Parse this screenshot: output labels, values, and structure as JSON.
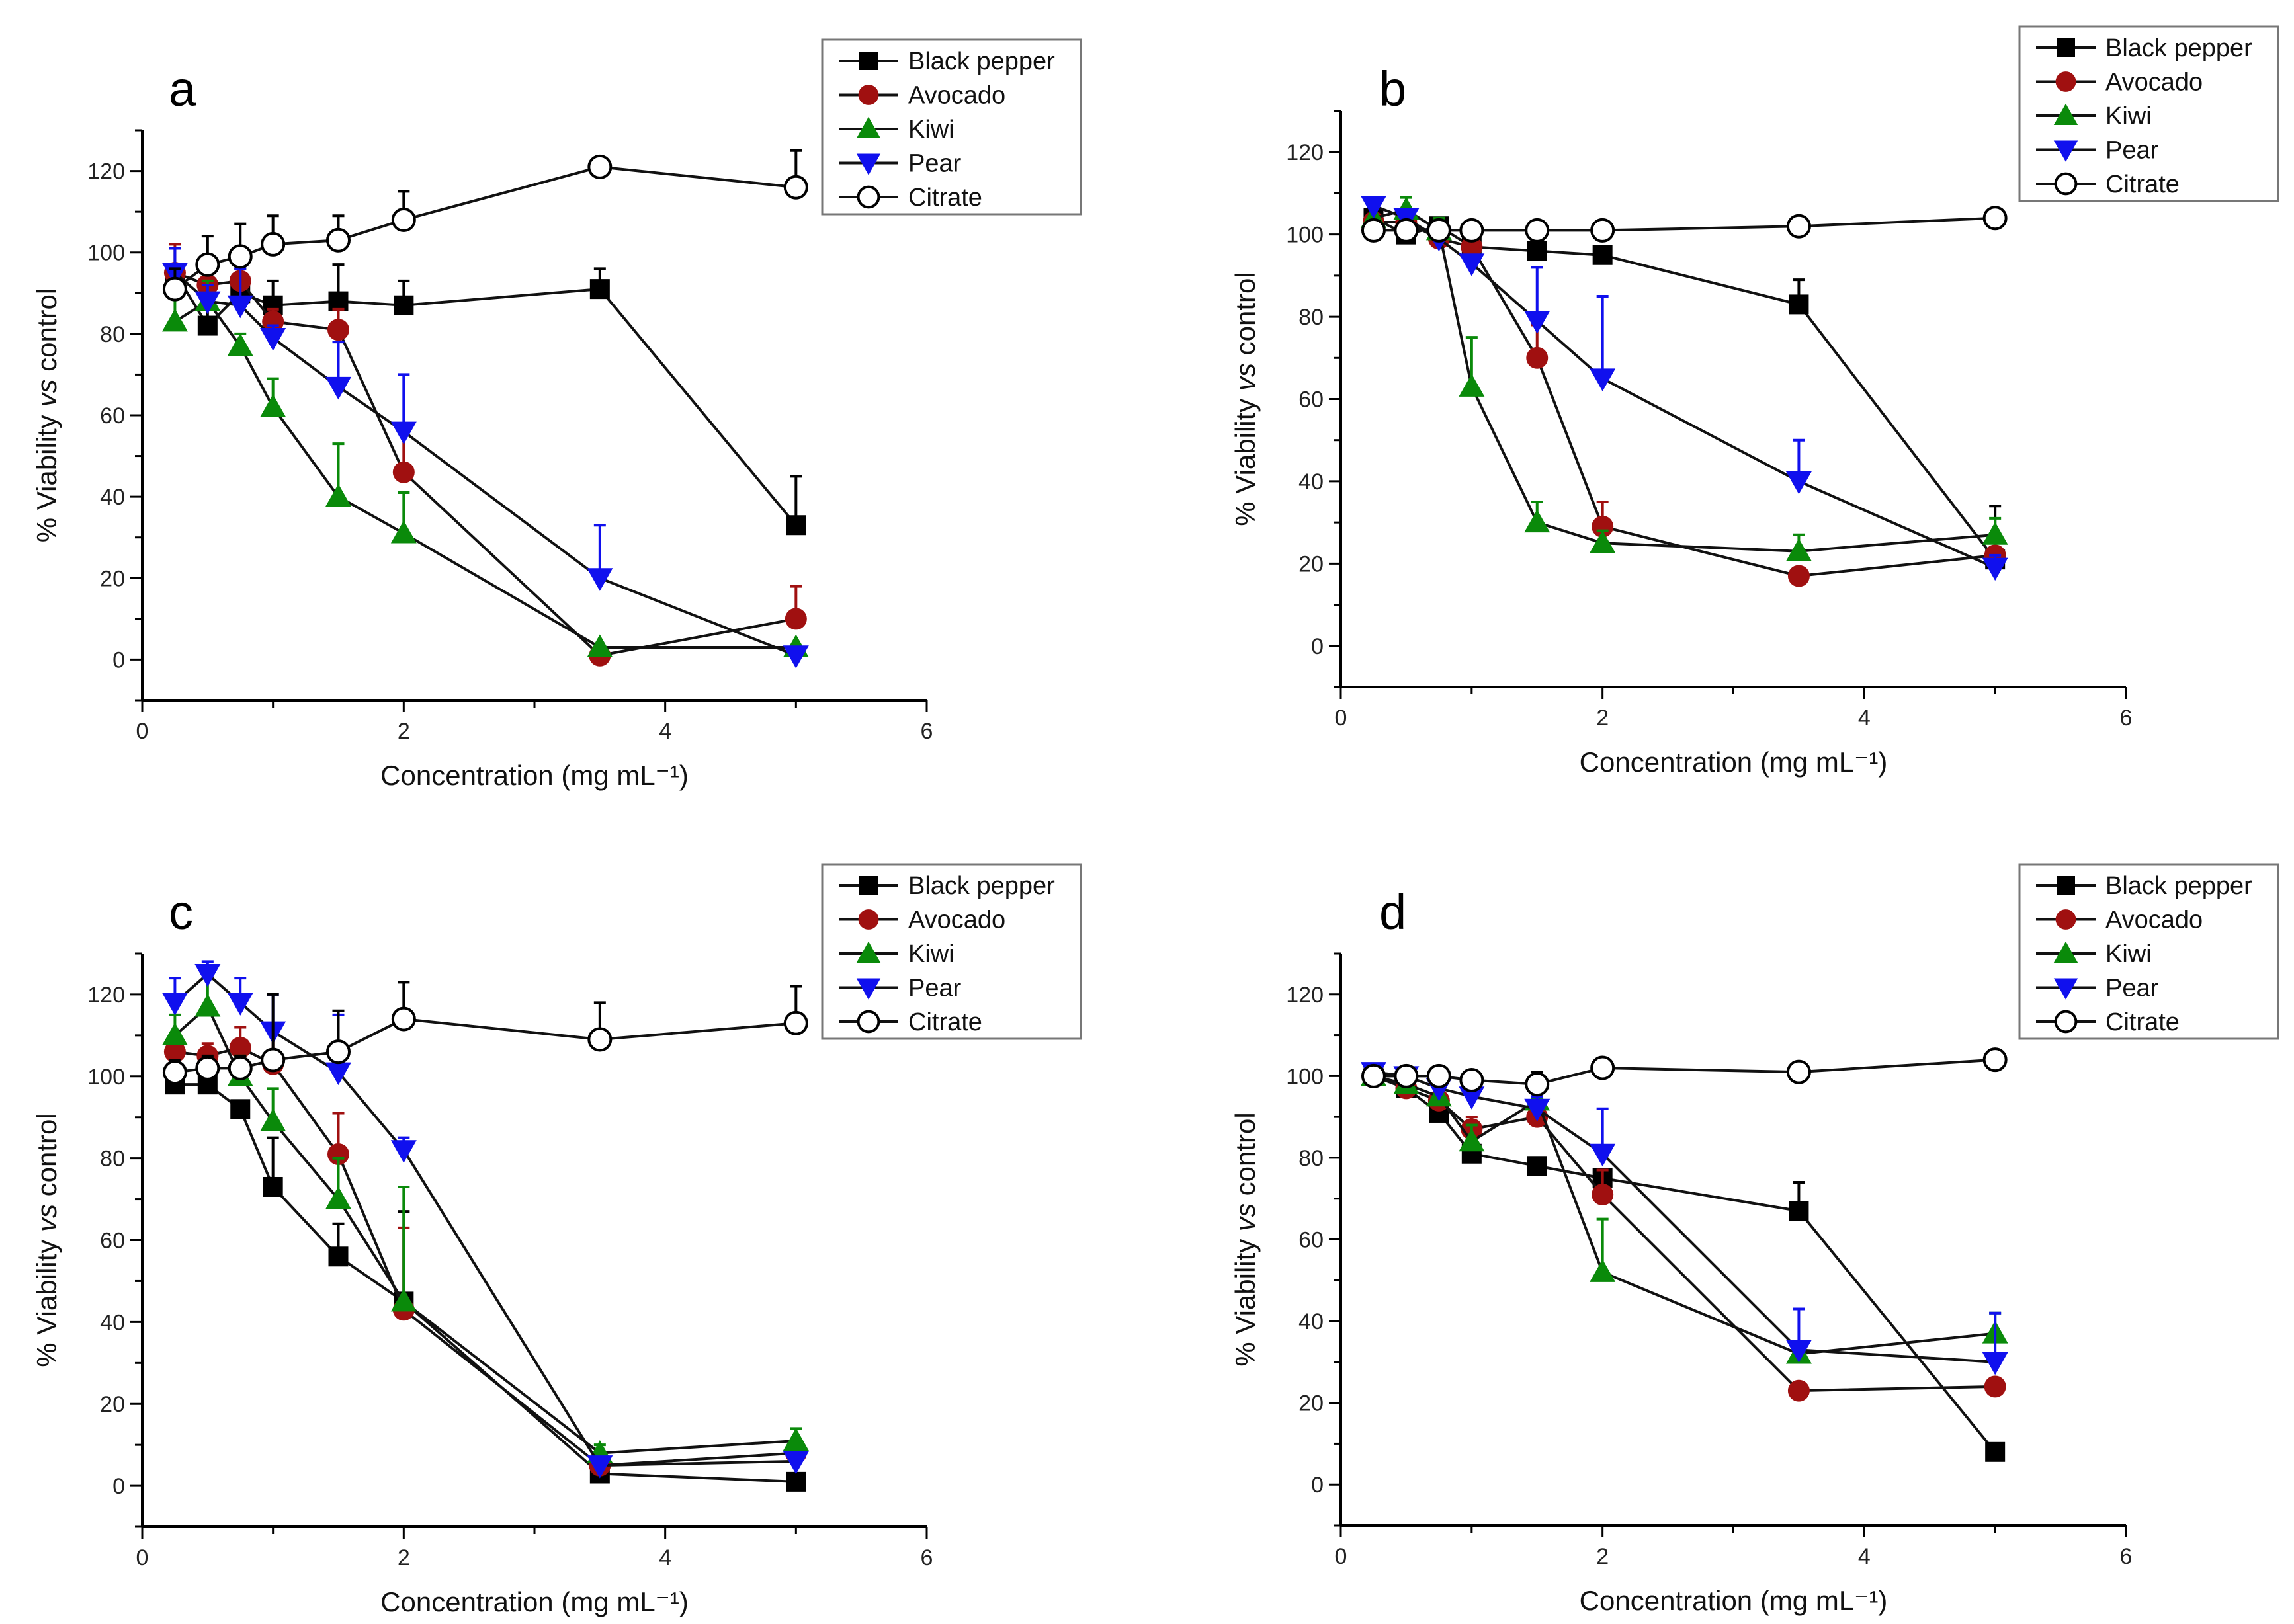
{
  "chart_data": [
    {
      "type": "line",
      "panel": "a",
      "xlabel": "Concentration (mg mL⁻¹)",
      "ylabel_parts": [
        "% Viability ",
        "vs",
        " control"
      ],
      "xlim": [
        0,
        6
      ],
      "ylim": [
        -10,
        130
      ],
      "xticks": [
        0,
        2,
        4,
        6
      ],
      "yticks": [
        0,
        20,
        40,
        60,
        80,
        100,
        120
      ],
      "legend": "top-right",
      "x": [
        0.25,
        0.5,
        0.75,
        1,
        1.5,
        2,
        3.5,
        5
      ],
      "series": [
        {
          "name": "Black pepper",
          "marker": "square",
          "color": "#000000",
          "values": [
            95,
            82,
            90,
            87,
            88,
            87,
            91,
            33
          ],
          "err": [
            6,
            6,
            6,
            6,
            9,
            6,
            5,
            12
          ]
        },
        {
          "name": "Avocado",
          "marker": "circle",
          "color": "#a01010",
          "values": [
            95,
            92,
            93,
            83,
            81,
            46,
            1,
            10
          ],
          "err": [
            7,
            5,
            8,
            3,
            5,
            10,
            0,
            8
          ]
        },
        {
          "name": "Kiwi",
          "marker": "triangle-up",
          "color": "#0a8a0a",
          "values": [
            83,
            88,
            77,
            62,
            40,
            31,
            3,
            3
          ],
          "err": [
            8,
            5,
            3,
            7,
            13,
            10,
            0,
            0
          ]
        },
        {
          "name": "Pear",
          "marker": "triangle-down",
          "color": "#1010ee",
          "values": [
            95,
            88,
            87,
            79,
            67,
            56,
            20,
            1
          ],
          "err": [
            6,
            4,
            9,
            3,
            11,
            14,
            13,
            0
          ]
        },
        {
          "name": "Citrate",
          "marker": "open-circle",
          "color": "#ffffff",
          "values": [
            91,
            97,
            99,
            102,
            103,
            108,
            121,
            116
          ],
          "err": [
            5,
            7,
            8,
            7,
            6,
            7,
            2,
            9
          ]
        }
      ]
    },
    {
      "type": "line",
      "panel": "b",
      "xlabel": "Concentration (mg mL⁻¹)",
      "ylabel_parts": [
        "% Viability ",
        "vs",
        " control"
      ],
      "xlim": [
        0,
        6
      ],
      "ylim": [
        -10,
        130
      ],
      "xticks": [
        0,
        2,
        4,
        6
      ],
      "yticks": [
        0,
        20,
        40,
        60,
        80,
        100,
        120
      ],
      "legend": "top-right",
      "x": [
        0.25,
        0.5,
        0.75,
        1,
        1.5,
        2,
        3.5,
        5
      ],
      "series": [
        {
          "name": "Black pepper",
          "marker": "square",
          "color": "#000000",
          "values": [
            104,
            100,
            102,
            97,
            96,
            95,
            83,
            21
          ],
          "err": [
            3,
            2,
            2,
            2,
            1,
            1,
            6,
            13
          ]
        },
        {
          "name": "Avocado",
          "marker": "circle",
          "color": "#a01010",
          "values": [
            103,
            103,
            99,
            97,
            70,
            29,
            17,
            22
          ],
          "err": [
            2,
            2,
            2,
            2,
            8,
            6,
            1,
            4
          ]
        },
        {
          "name": "Kiwi",
          "marker": "triangle-up",
          "color": "#0a8a0a",
          "values": [
            104,
            106,
            101,
            63,
            30,
            25,
            23,
            27
          ],
          "err": [
            3,
            3,
            3,
            12,
            5,
            3,
            4,
            4
          ]
        },
        {
          "name": "Pear",
          "marker": "triangle-down",
          "color": "#1010ee",
          "values": [
            107,
            104,
            99,
            93,
            79,
            65,
            40,
            19
          ],
          "err": [
            2,
            2,
            2,
            2,
            13,
            20,
            10,
            3
          ]
        },
        {
          "name": "Citrate",
          "marker": "open-circle",
          "color": "#ffffff",
          "values": [
            101,
            101,
            101,
            101,
            101,
            101,
            102,
            104
          ],
          "err": [
            1,
            1,
            1,
            1,
            1,
            1,
            1,
            2
          ]
        }
      ]
    },
    {
      "type": "line",
      "panel": "c",
      "xlabel": "Concentration (mg mL⁻¹)",
      "ylabel_parts": [
        "% Viability ",
        "vs",
        " control"
      ],
      "xlim": [
        0,
        6
      ],
      "ylim": [
        -10,
        130
      ],
      "xticks": [
        0,
        2,
        4,
        6
      ],
      "yticks": [
        0,
        20,
        40,
        60,
        80,
        100,
        120
      ],
      "legend": "top-right",
      "x": [
        0.25,
        0.5,
        0.75,
        1,
        1.5,
        2,
        3.5,
        5
      ],
      "series": [
        {
          "name": "Black pepper",
          "marker": "square",
          "color": "#000000",
          "values": [
            98,
            98,
            92,
            73,
            56,
            45,
            3,
            1
          ],
          "err": [
            2,
            2,
            2,
            12,
            8,
            22,
            2,
            1
          ]
        },
        {
          "name": "Avocado",
          "marker": "circle",
          "color": "#a01010",
          "values": [
            106,
            105,
            107,
            103,
            81,
            43,
            5,
            8
          ],
          "err": [
            4,
            3,
            5,
            8,
            10,
            20,
            2,
            2
          ]
        },
        {
          "name": "Kiwi",
          "marker": "triangle-up",
          "color": "#0a8a0a",
          "values": [
            110,
            117,
            100,
            89,
            70,
            45,
            8,
            11
          ],
          "err": [
            5,
            8,
            5,
            8,
            10,
            28,
            2,
            3
          ]
        },
        {
          "name": "Pear",
          "marker": "triangle-down",
          "color": "#1010ee",
          "values": [
            118,
            125,
            118,
            111,
            101,
            82,
            5,
            6
          ],
          "err": [
            6,
            3,
            6,
            9,
            14,
            3,
            2,
            2
          ]
        },
        {
          "name": "Citrate",
          "marker": "open-circle",
          "color": "#ffffff",
          "values": [
            101,
            102,
            102,
            104,
            106,
            114,
            109,
            113
          ],
          "err": [
            3,
            3,
            3,
            16,
            10,
            9,
            9,
            9
          ]
        }
      ]
    },
    {
      "type": "line",
      "panel": "d",
      "xlabel": "Concentration (mg mL⁻¹)",
      "ylabel_parts": [
        "% Viability ",
        "vs",
        " control"
      ],
      "xlim": [
        0,
        6
      ],
      "ylim": [
        -10,
        130
      ],
      "xticks": [
        0,
        2,
        4,
        6
      ],
      "yticks": [
        0,
        20,
        40,
        60,
        80,
        100,
        120
      ],
      "legend": "top-right",
      "x": [
        0.25,
        0.5,
        0.75,
        1,
        1.5,
        2,
        3.5,
        5
      ],
      "series": [
        {
          "name": "Black pepper",
          "marker": "square",
          "color": "#000000",
          "values": [
            100,
            97,
            91,
            81,
            78,
            75,
            67,
            8
          ],
          "err": [
            2,
            2,
            2,
            2,
            2,
            2,
            7,
            1
          ]
        },
        {
          "name": "Avocado",
          "marker": "circle",
          "color": "#a01010",
          "values": [
            100,
            97,
            94,
            87,
            90,
            71,
            23,
            24
          ],
          "err": [
            2,
            2,
            2,
            3,
            3,
            6,
            1,
            1
          ]
        },
        {
          "name": "Kiwi",
          "marker": "triangle-up",
          "color": "#0a8a0a",
          "values": [
            100,
            98,
            95,
            84,
            94,
            52,
            32,
            37
          ],
          "err": [
            2,
            2,
            2,
            4,
            3,
            13,
            3,
            5
          ]
        },
        {
          "name": "Pear",
          "marker": "triangle-down",
          "color": "#1010ee",
          "values": [
            101,
            100,
            97,
            95,
            92,
            81,
            33,
            30
          ],
          "err": [
            2,
            2,
            2,
            3,
            3,
            11,
            10,
            12
          ]
        },
        {
          "name": "Citrate",
          "marker": "open-circle",
          "color": "#ffffff",
          "values": [
            100,
            100,
            100,
            99,
            98,
            102,
            101,
            104
          ],
          "err": [
            2,
            2,
            2,
            2,
            3,
            2,
            1,
            2
          ]
        }
      ]
    }
  ]
}
